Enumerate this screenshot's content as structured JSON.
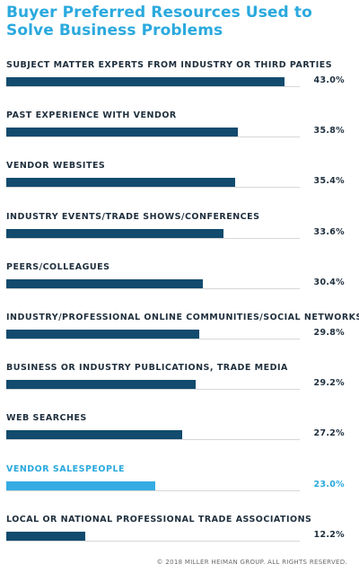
{
  "chart_data": {
    "type": "bar",
    "title": "Buyer Preferred Resources Used to Solve Business Problems",
    "categories": [
      "SUBJECT MATTER EXPERTS FROM INDUSTRY OR THIRD PARTIES",
      "PAST EXPERIENCE WITH VENDOR",
      "VENDOR WEBSITES",
      "INDUSTRY EVENTS/TRADE SHOWS/CONFERENCES",
      "PEERS/COLLEAGUES",
      "INDUSTRY/PROFESSIONAL ONLINE COMMUNITIES/SOCIAL NETWORKS",
      "BUSINESS OR INDUSTRY PUBLICATIONS, TRADE MEDIA",
      "WEB SEARCHES",
      "VENDOR SALESPEOPLE",
      "LOCAL OR NATIONAL PROFESSIONAL TRADE ASSOCIATIONS"
    ],
    "values": [
      43.0,
      35.8,
      35.4,
      33.6,
      30.4,
      29.8,
      29.2,
      27.2,
      23.0,
      12.2
    ],
    "value_labels": [
      "43.0%",
      "35.8%",
      "35.4%",
      "33.6%",
      "30.4%",
      "29.8%",
      "29.2%",
      "27.2%",
      "23.0%",
      "12.2%"
    ],
    "highlighted_category": "VENDOR SALESPEOPLE",
    "orientation": "horizontal",
    "grid": false,
    "legend": "none",
    "colors": {
      "bar": "#124b6e",
      "highlight": "#34ace3",
      "title": "#2aa9de"
    }
  },
  "footer": "© 2018 MILLER HEIMAN GROUP. ALL RIGHTS RESERVED."
}
